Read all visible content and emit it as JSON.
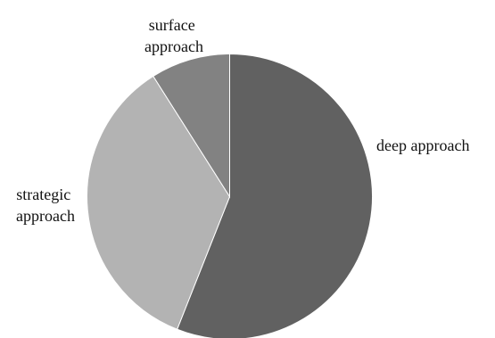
{
  "chart_data": {
    "type": "pie",
    "title": "",
    "slices": [
      {
        "label": "deep approach",
        "value": 56,
        "color": "#616161"
      },
      {
        "label": "strategic approach",
        "value": 35,
        "color": "#b3b3b3"
      },
      {
        "label": "surface approach",
        "value": 9,
        "color": "#828282"
      }
    ],
    "start_angle_deg": 0,
    "direction": "clockwise",
    "legend": "none",
    "labels_outside": true
  }
}
